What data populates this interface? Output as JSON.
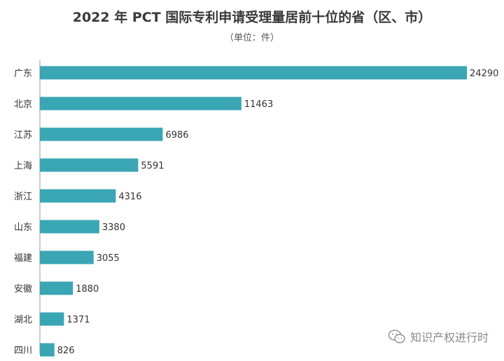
{
  "chart_data": {
    "type": "bar",
    "orientation": "horizontal",
    "title": "2022 年 PCT 国际专利申请受理量居前十位的省（区、市）",
    "subtitle": "（单位：件）",
    "categories": [
      "广东",
      "北京",
      "江苏",
      "上海",
      "浙江",
      "山东",
      "福建",
      "安徽",
      "湖北",
      "四川"
    ],
    "values": [
      24290,
      11463,
      6986,
      5591,
      4316,
      3380,
      3055,
      1880,
      1371,
      826
    ],
    "xlim": [
      0,
      24290
    ],
    "grid": false,
    "bar_color": "#3aa6b4"
  },
  "watermark": {
    "text": "知识产权进行时",
    "icon": "wechat-icon"
  }
}
